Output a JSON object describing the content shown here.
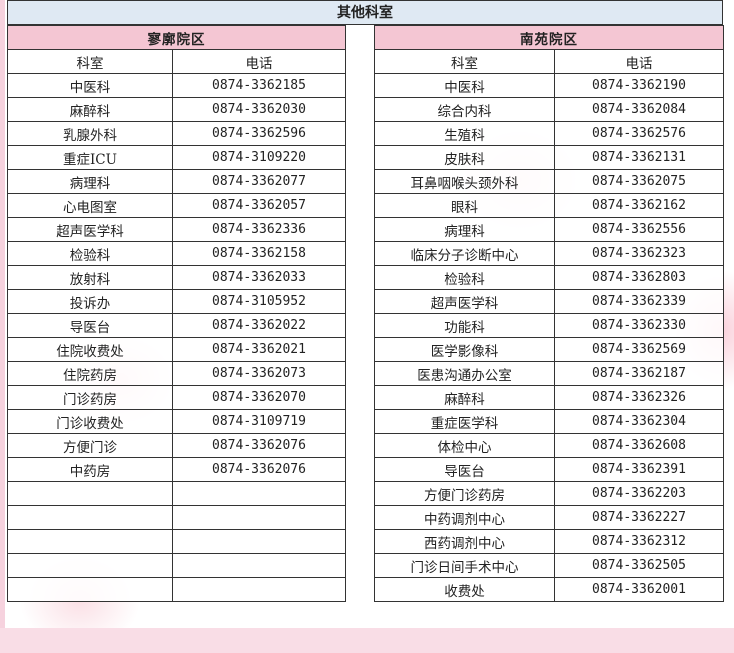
{
  "title": "其他科室",
  "left": {
    "district": "寥廓院区",
    "headers": [
      "科室",
      "电话"
    ],
    "rows": [
      [
        "中医科",
        "0874-3362185"
      ],
      [
        "麻醉科",
        "0874-3362030"
      ],
      [
        "乳腺外科",
        "0874-3362596"
      ],
      [
        "重症ICU",
        "0874-3109220"
      ],
      [
        "病理科",
        "0874-3362077"
      ],
      [
        "心电图室",
        "0874-3362057"
      ],
      [
        "超声医学科",
        "0874-3362336"
      ],
      [
        "检验科",
        "0874-3362158"
      ],
      [
        "放射科",
        "0874-3362033"
      ],
      [
        "投诉办",
        "0874-3105952"
      ],
      [
        "导医台",
        "0874-3362022"
      ],
      [
        "住院收费处",
        "0874-3362021"
      ],
      [
        "住院药房",
        "0874-3362073"
      ],
      [
        "门诊药房",
        "0874-3362070"
      ],
      [
        "门诊收费处",
        "0874-3109719"
      ],
      [
        "方便门诊",
        "0874-3362076"
      ],
      [
        "中药房",
        "0874-3362076"
      ],
      [
        "",
        ""
      ],
      [
        "",
        ""
      ],
      [
        "",
        ""
      ],
      [
        "",
        ""
      ],
      [
        "",
        ""
      ]
    ]
  },
  "right": {
    "district": "南苑院区",
    "headers": [
      "科室",
      "电话"
    ],
    "rows": [
      [
        "中医科",
        "0874-3362190"
      ],
      [
        "综合内科",
        "0874-3362084"
      ],
      [
        "生殖科",
        "0874-3362576"
      ],
      [
        "皮肤科",
        "0874-3362131"
      ],
      [
        "耳鼻咽喉头颈外科",
        "0874-3362075"
      ],
      [
        "眼科",
        "0874-3362162"
      ],
      [
        "病理科",
        "0874-3362556"
      ],
      [
        "临床分子诊断中心",
        "0874-3362323"
      ],
      [
        "检验科",
        "0874-3362803"
      ],
      [
        "超声医学科",
        "0874-3362339"
      ],
      [
        "功能科",
        "0874-3362330"
      ],
      [
        "医学影像科",
        "0874-3362569"
      ],
      [
        "医患沟通办公室",
        "0874-3362187"
      ],
      [
        "麻醉科",
        "0874-3362326"
      ],
      [
        "重症医学科",
        "0874-3362304"
      ],
      [
        "体检中心",
        "0874-3362608"
      ],
      [
        "导医台",
        "0874-3362391"
      ],
      [
        "方便门诊药房",
        "0874-3362203"
      ],
      [
        "中药调剂中心",
        "0874-3362227"
      ],
      [
        "西药调剂中心",
        "0874-3362312"
      ],
      [
        "门诊日间手术中心",
        "0874-3362505"
      ],
      [
        "收费处",
        "0874-3362001"
      ]
    ]
  },
  "colors": {
    "district_header": "#f4c6d3",
    "title_bar": "#dfe9f3"
  }
}
